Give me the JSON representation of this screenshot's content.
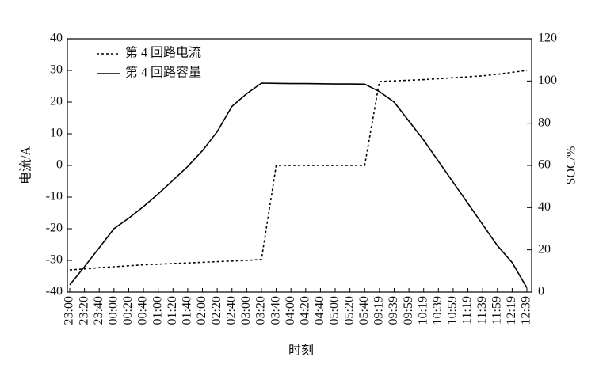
{
  "chart_data": {
    "type": "line",
    "categories": [
      "23:00",
      "23:20",
      "23:40",
      "00:00",
      "00:20",
      "00:40",
      "01:00",
      "01:20",
      "01:40",
      "02:00",
      "02:20",
      "02:40",
      "03:00",
      "03:20",
      "03:40",
      "04:00",
      "04:20",
      "04:40",
      "05:00",
      "05:20",
      "05:40",
      "09:19",
      "09:39",
      "09:59",
      "10:19",
      "10:39",
      "10:59",
      "11:19",
      "11:39",
      "11:59",
      "12:19",
      "12:39"
    ],
    "series": [
      {
        "name": "第 4 回路电流",
        "color": "#000000",
        "dash": true,
        "values": [
          -33,
          -32.7,
          -32.3,
          -32,
          -31.7,
          -31.4,
          -31.2,
          -31,
          -30.8,
          -30.6,
          -30.4,
          -30.2,
          -30,
          -29.7,
          0,
          0,
          0,
          0,
          0,
          0,
          0,
          26.5,
          26.7,
          26.9,
          27.1,
          27.4,
          27.7,
          28,
          28.3,
          28.8,
          29.4,
          30
        ]
      },
      {
        "name": "第 4 回路容量",
        "color": "#000000",
        "dash": false,
        "axis": "y2",
        "values": [
          3.4,
          12,
          21,
          30,
          35,
          40.5,
          46.5,
          53,
          59.5,
          67,
          76,
          88,
          94,
          99,
          98.9,
          98.8,
          98.8,
          98.7,
          98.6,
          98.6,
          98.5,
          95,
          90,
          81,
          72,
          62,
          52,
          42,
          32,
          22,
          14,
          2
        ]
      }
    ],
    "xlabel": "时刻",
    "ylabel": "电流/A",
    "y2label": "SOC/%",
    "ylim": [
      -40,
      40
    ],
    "yticks": [
      -40,
      -30,
      -20,
      -10,
      0,
      10,
      20,
      30,
      40
    ],
    "y2lim": [
      0,
      120
    ],
    "y2ticks": [
      0,
      20,
      40,
      60,
      80,
      100,
      120
    ],
    "legend": "upper left"
  }
}
